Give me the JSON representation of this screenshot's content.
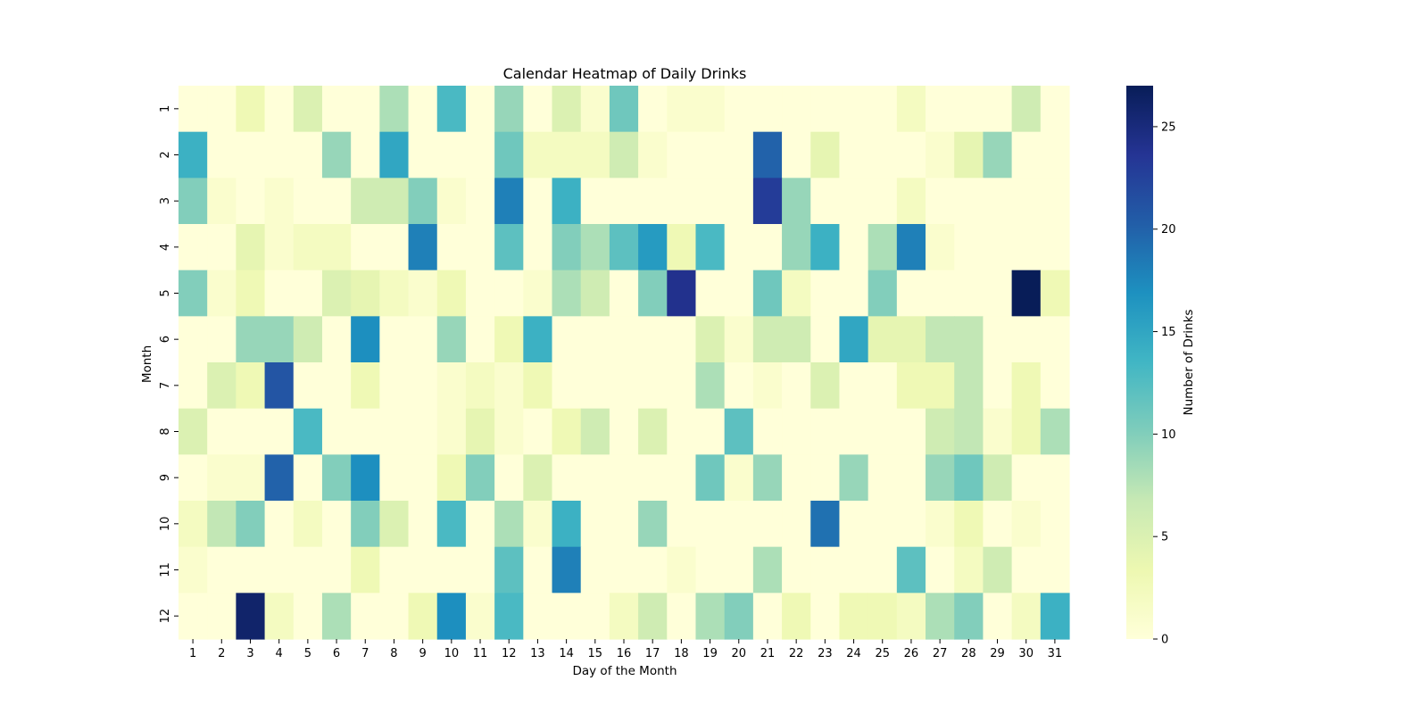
{
  "chart_data": {
    "type": "heatmap",
    "title": "Calendar Heatmap of Daily Drinks",
    "xlabel": "Day of the Month",
    "ylabel": "Month",
    "x_categories": [
      "1",
      "2",
      "3",
      "4",
      "5",
      "6",
      "7",
      "8",
      "9",
      "10",
      "11",
      "12",
      "13",
      "14",
      "15",
      "16",
      "17",
      "18",
      "19",
      "20",
      "21",
      "22",
      "23",
      "24",
      "25",
      "26",
      "27",
      "28",
      "29",
      "30",
      "31"
    ],
    "y_categories": [
      "1",
      "2",
      "3",
      "4",
      "5",
      "6",
      "7",
      "8",
      "9",
      "10",
      "11",
      "12"
    ],
    "values": [
      [
        0,
        0,
        3,
        0,
        5,
        0,
        0,
        8,
        0,
        13,
        0,
        9,
        0,
        5,
        1,
        11,
        0,
        1,
        1,
        0,
        0,
        0,
        0,
        0,
        0,
        2,
        0,
        0,
        0,
        6,
        0
      ],
      [
        14,
        0,
        0,
        0,
        0,
        9,
        0,
        15,
        0,
        0,
        0,
        11,
        2,
        2,
        2,
        6,
        1,
        0,
        0,
        0,
        20,
        0,
        4,
        0,
        0,
        0,
        1,
        4,
        9,
        0,
        0
      ],
      [
        10,
        1,
        0,
        1,
        0,
        0,
        6,
        6,
        10,
        1,
        0,
        18,
        0,
        14,
        0,
        0,
        0,
        0,
        0,
        0,
        23,
        9,
        0,
        0,
        0,
        2,
        0,
        0,
        0,
        0,
        0
      ],
      [
        0,
        0,
        4,
        1,
        2,
        2,
        0,
        0,
        18,
        0,
        0,
        12,
        0,
        10,
        8,
        12,
        16,
        3,
        13,
        0,
        0,
        9,
        14,
        0,
        8,
        18,
        1,
        0,
        0,
        0,
        0
      ],
      [
        10,
        1,
        3,
        0,
        0,
        5,
        4,
        2,
        1,
        3,
        0,
        0,
        1,
        8,
        6,
        0,
        10,
        24,
        0,
        0,
        11,
        2,
        0,
        0,
        10,
        0,
        0,
        0,
        0,
        27,
        3
      ],
      [
        0,
        0,
        9,
        9,
        6,
        0,
        17,
        0,
        0,
        9,
        0,
        3,
        14,
        0,
        0,
        0,
        0,
        0,
        5,
        1,
        6,
        6,
        0,
        15,
        4,
        4,
        7,
        7,
        0,
        0,
        0
      ],
      [
        0,
        5,
        3,
        21,
        0,
        0,
        3,
        0,
        0,
        1,
        2,
        1,
        3,
        0,
        0,
        0,
        0,
        0,
        8,
        0,
        1,
        0,
        5,
        0,
        0,
        3,
        3,
        7,
        0,
        3,
        0
      ],
      [
        5,
        0,
        0,
        0,
        13,
        0,
        0,
        0,
        0,
        1,
        4,
        1,
        0,
        3,
        6,
        0,
        5,
        0,
        0,
        12,
        0,
        0,
        0,
        0,
        0,
        0,
        6,
        7,
        1,
        3,
        8
      ],
      [
        0,
        1,
        1,
        20,
        0,
        10,
        17,
        0,
        0,
        3,
        10,
        0,
        5,
        0,
        0,
        0,
        0,
        0,
        11,
        1,
        9,
        0,
        0,
        9,
        0,
        0,
        9,
        11,
        6,
        0,
        0
      ],
      [
        2,
        7,
        10,
        0,
        2,
        0,
        10,
        5,
        0,
        13,
        0,
        8,
        1,
        14,
        0,
        0,
        9,
        0,
        0,
        0,
        0,
        0,
        19,
        0,
        0,
        0,
        1,
        3,
        0,
        1,
        0
      ],
      [
        1,
        0,
        0,
        0,
        0,
        0,
        3,
        0,
        0,
        0,
        0,
        12,
        0,
        18,
        0,
        0,
        0,
        1,
        0,
        0,
        8,
        0,
        0,
        0,
        0,
        12,
        0,
        2,
        6,
        0,
        0
      ],
      [
        0,
        0,
        26,
        2,
        0,
        8,
        0,
        0,
        3,
        17,
        1,
        13,
        0,
        0,
        0,
        2,
        6,
        0,
        8,
        10,
        0,
        3,
        0,
        3,
        3,
        2,
        8,
        10,
        0,
        2,
        14
      ]
    ],
    "zlim": [
      0,
      27
    ],
    "colormap": "YlGnBu",
    "colorbar": {
      "label": "Number of Drinks",
      "ticks": [
        "0",
        "5",
        "10",
        "15",
        "20",
        "25"
      ]
    }
  }
}
